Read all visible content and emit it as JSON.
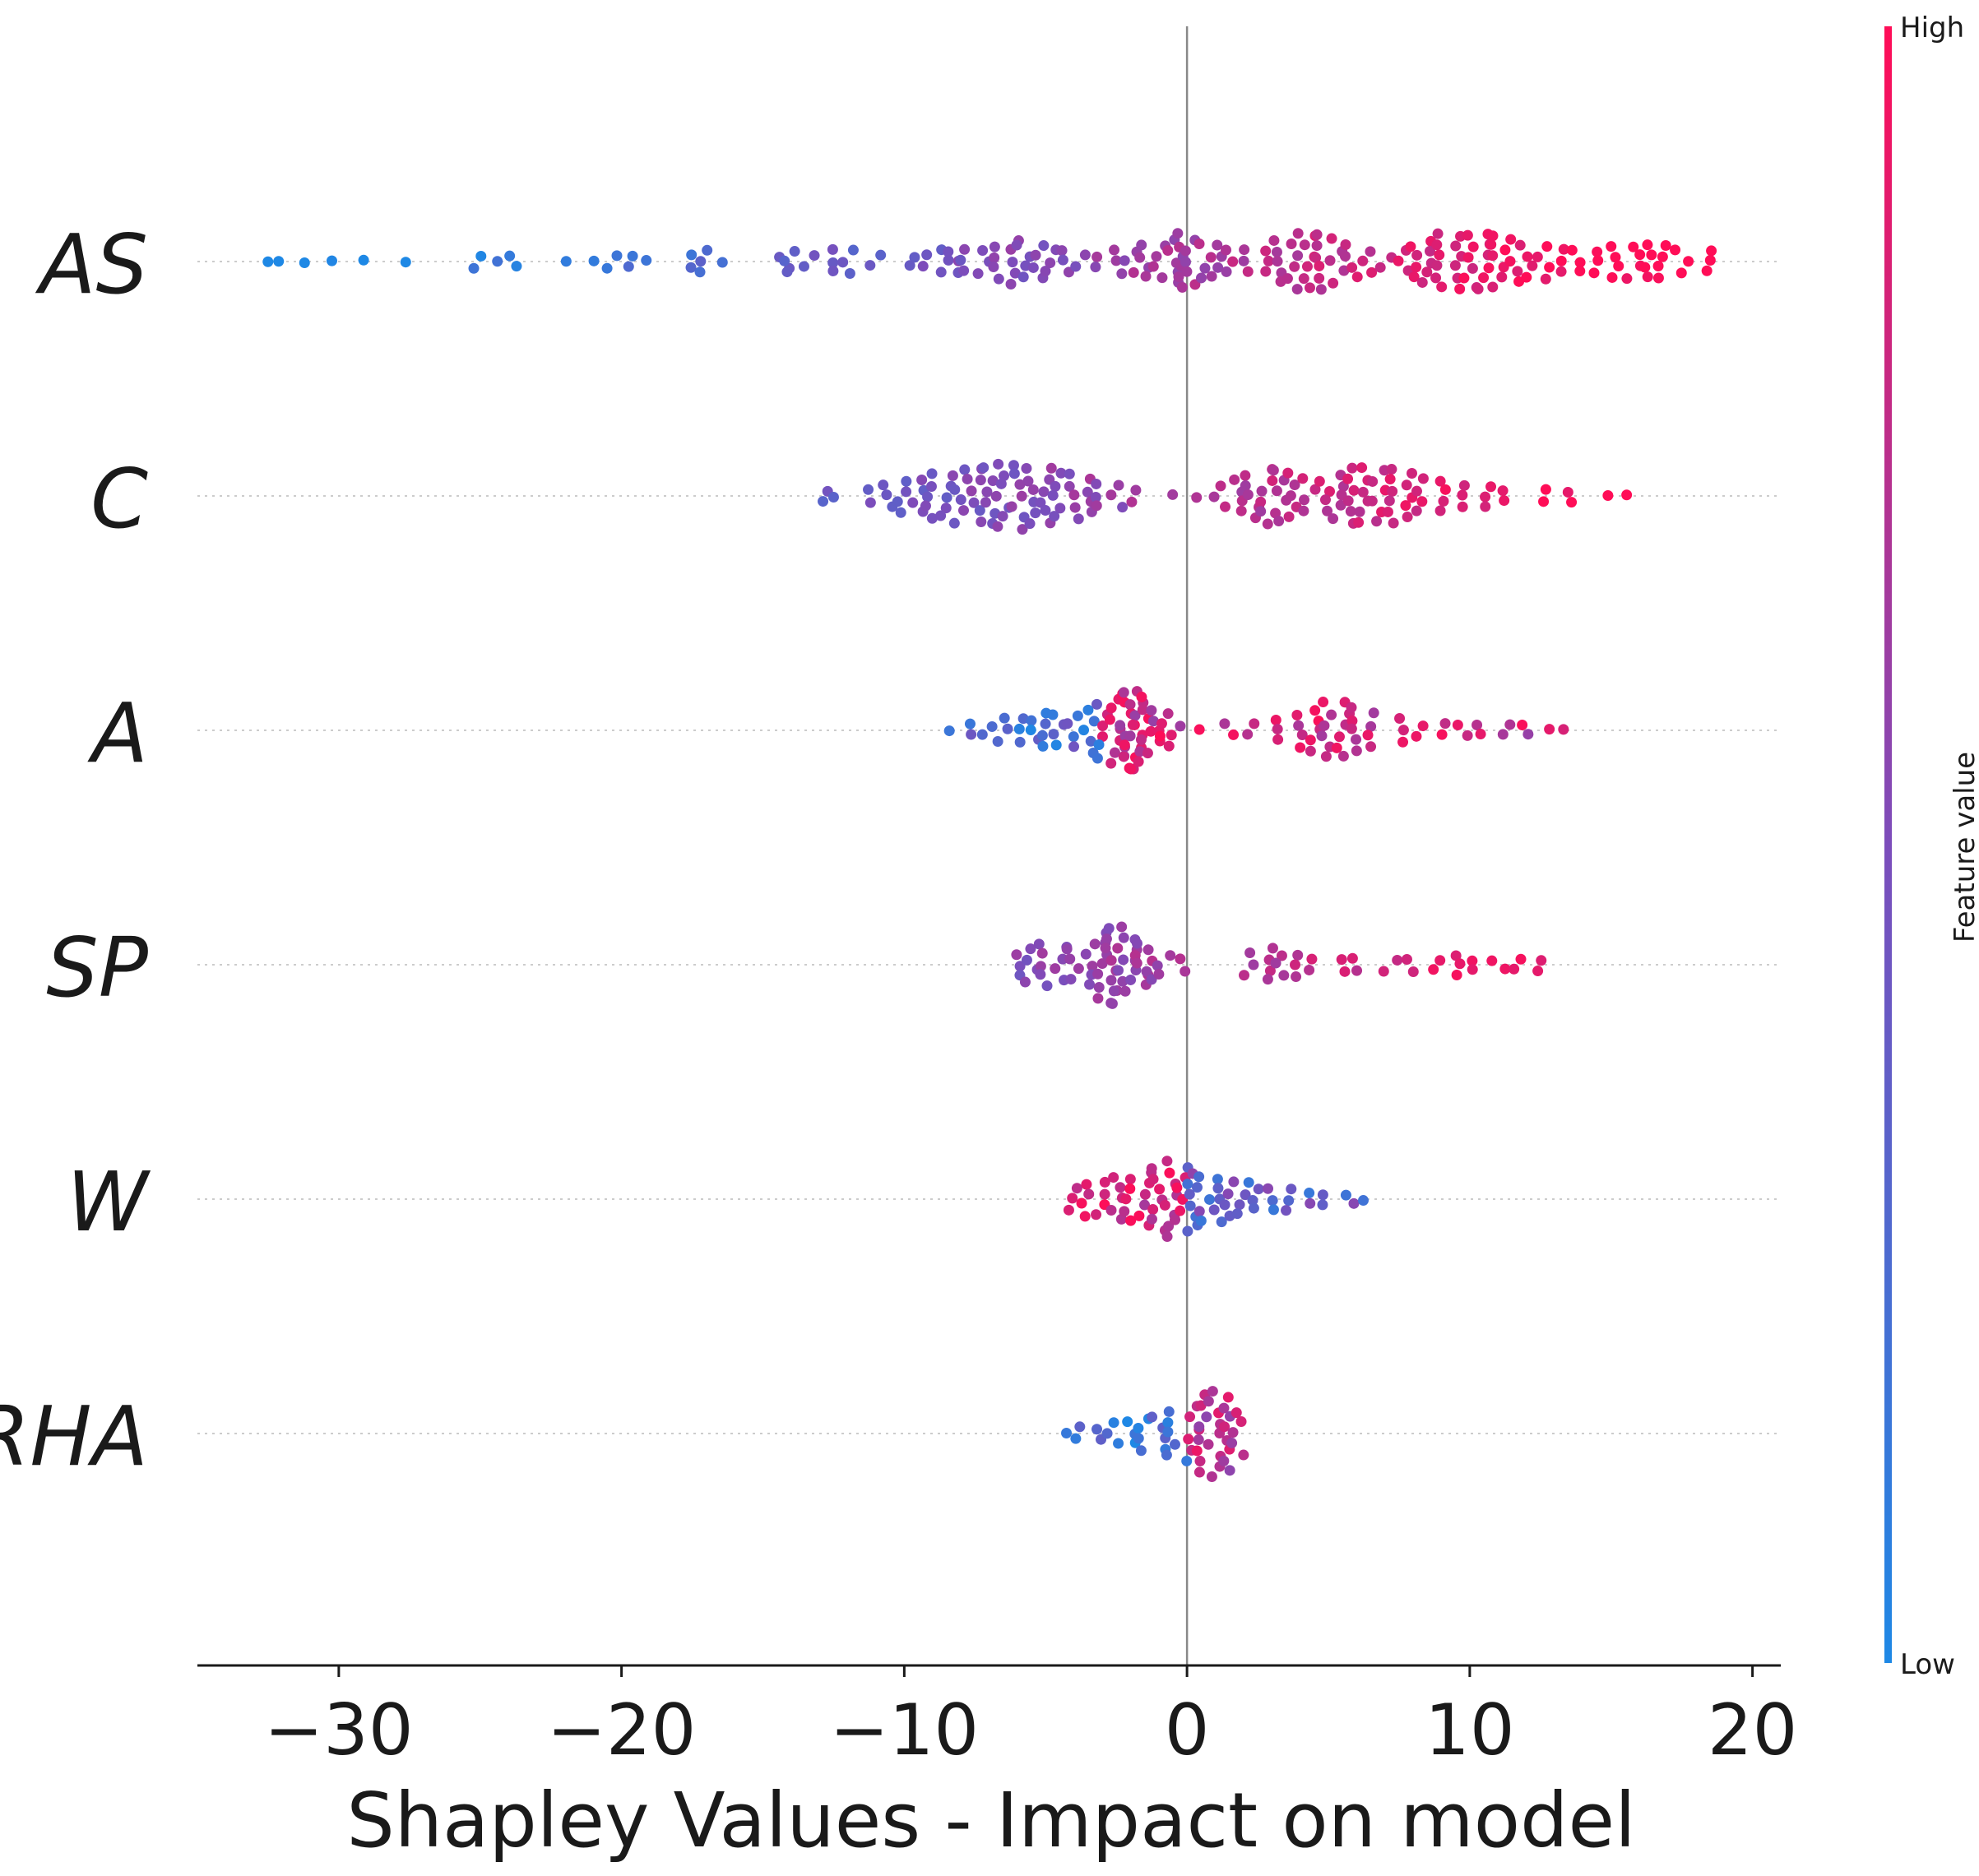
{
  "chart_data": {
    "type": "scatter",
    "subtype": "shap-beeswarm",
    "xlabel": "Shapley Values - Impact on model",
    "xlim": [
      -35,
      21
    ],
    "xticks": [
      -30,
      -20,
      -10,
      0,
      10,
      20
    ],
    "xtick_labels": [
      "−30",
      "−20",
      "−10",
      "0",
      "10",
      "20"
    ],
    "features": [
      "AS",
      "C",
      "A",
      "SP",
      "W",
      "RHA"
    ],
    "colorbar": {
      "title": "Feature value",
      "high_label": "High",
      "low_label": "Low",
      "low_color": "#1e88e5",
      "high_color": "#ff0d57"
    },
    "series": [
      {
        "name": "AS",
        "description": "Widest spread; low values (blue) strongly negative, high values (red) positive",
        "points": [
          [
            -32.5,
            0.05
          ],
          [
            -32.0,
            0.02
          ],
          [
            -31.0,
            0.1
          ],
          [
            -30.2,
            0.05
          ],
          [
            -29.2,
            0.12
          ],
          [
            -27.5,
            0.08
          ],
          [
            -25.0,
            0.15
          ],
          [
            -24.2,
            0.1
          ],
          [
            -23.8,
            0.2
          ],
          [
            -22.2,
            0.05
          ],
          [
            -21.0,
            0.1
          ],
          [
            -20.3,
            0.15
          ],
          [
            -19.8,
            0.2
          ],
          [
            -19.2,
            0.12
          ],
          [
            -17.5,
            0.15
          ],
          [
            -17.2,
            0.25
          ],
          [
            -16.3,
            0.1
          ],
          [
            -14.3,
            0.2
          ],
          [
            -14.0,
            0.25
          ],
          [
            -13.3,
            0.15
          ],
          [
            -12.5,
            0.3
          ],
          [
            -12.0,
            0.25
          ],
          [
            -11.0,
            0.2
          ],
          [
            -9.8,
            0.2
          ],
          [
            -9.2,
            0.15
          ],
          [
            -8.5,
            0.3
          ],
          [
            -8.2,
            0.25
          ],
          [
            -7.8,
            0.28
          ],
          [
            -7.2,
            0.32
          ],
          [
            -6.8,
            0.35
          ],
          [
            -6.2,
            0.45
          ],
          [
            -5.8,
            0.4
          ],
          [
            -5.3,
            0.38
          ],
          [
            -4.8,
            0.3
          ],
          [
            -4.3,
            0.25
          ],
          [
            -3.8,
            0.2
          ],
          [
            -3.0,
            0.18
          ],
          [
            -2.5,
            0.25
          ],
          [
            -2.0,
            0.3
          ],
          [
            -1.5,
            0.35
          ],
          [
            -1.0,
            0.38
          ],
          [
            -0.5,
            0.45
          ],
          [
            -0.2,
            0.55
          ],
          [
            0.2,
            0.5
          ],
          [
            0.6,
            0.4
          ],
          [
            1.0,
            0.35
          ],
          [
            1.6,
            0.3
          ],
          [
            2.2,
            0.25
          ],
          [
            2.8,
            0.28
          ],
          [
            3.2,
            0.45
          ],
          [
            3.8,
            0.55
          ],
          [
            4.3,
            0.6
          ],
          [
            4.8,
            0.55
          ],
          [
            5.3,
            0.45
          ],
          [
            5.8,
            0.4
          ],
          [
            6.4,
            0.3
          ],
          [
            7.0,
            0.22
          ],
          [
            7.6,
            0.3
          ],
          [
            8.0,
            0.42
          ],
          [
            8.5,
            0.5
          ],
          [
            9.0,
            0.55
          ],
          [
            9.5,
            0.58
          ],
          [
            10.0,
            0.6
          ],
          [
            10.5,
            0.62
          ],
          [
            11.0,
            0.58
          ],
          [
            11.5,
            0.5
          ],
          [
            12.0,
            0.42
          ],
          [
            12.6,
            0.35
          ],
          [
            13.2,
            0.3
          ],
          [
            13.8,
            0.25
          ],
          [
            14.5,
            0.3
          ],
          [
            15.2,
            0.35
          ],
          [
            15.8,
            0.35
          ],
          [
            16.3,
            0.42
          ],
          [
            16.8,
            0.38
          ],
          [
            17.5,
            0.28
          ],
          [
            18.3,
            0.3
          ]
        ]
      },
      {
        "name": "C",
        "description": "Low values (blue) negative around -6, high values (purple/red) positive up to 15",
        "points": [
          [
            -12.8,
            0.15
          ],
          [
            -12.3,
            0.12
          ],
          [
            -11.2,
            0.2
          ],
          [
            -10.5,
            0.3
          ],
          [
            -10.0,
            0.35
          ],
          [
            -9.5,
            0.4
          ],
          [
            -9.0,
            0.45
          ],
          [
            -8.5,
            0.5
          ],
          [
            -8.0,
            0.55
          ],
          [
            -7.5,
            0.6
          ],
          [
            -7.0,
            0.62
          ],
          [
            -6.5,
            0.65
          ],
          [
            -6.0,
            0.68
          ],
          [
            -5.5,
            0.6
          ],
          [
            -5.0,
            0.55
          ],
          [
            -4.5,
            0.5
          ],
          [
            -4.0,
            0.45
          ],
          [
            -3.5,
            0.38
          ],
          [
            -3.0,
            0.3
          ],
          [
            -2.5,
            0.25
          ],
          [
            -1.8,
            0.2
          ],
          [
            -0.5,
            0.1
          ],
          [
            0.2,
            0.08
          ],
          [
            1.2,
            0.3
          ],
          [
            1.8,
            0.4
          ],
          [
            2.3,
            0.5
          ],
          [
            2.8,
            0.55
          ],
          [
            3.3,
            0.58
          ],
          [
            3.8,
            0.5
          ],
          [
            4.3,
            0.4
          ],
          [
            4.8,
            0.42
          ],
          [
            5.3,
            0.5
          ],
          [
            5.8,
            0.56
          ],
          [
            6.3,
            0.6
          ],
          [
            6.8,
            0.62
          ],
          [
            7.3,
            0.58
          ],
          [
            7.8,
            0.5
          ],
          [
            8.3,
            0.42
          ],
          [
            9.0,
            0.35
          ],
          [
            9.8,
            0.3
          ],
          [
            10.5,
            0.25
          ],
          [
            11.2,
            0.2
          ],
          [
            12.8,
            0.18
          ],
          [
            13.5,
            0.15
          ],
          [
            15.0,
            0.12
          ],
          [
            15.5,
            0.1
          ]
        ]
      },
      {
        "name": "A",
        "description": "Dense cluster near -2 (mixed colors), high values (red) positive 4-13",
        "points": [
          [
            -8.2,
            0.1
          ],
          [
            -7.5,
            0.15
          ],
          [
            -7.0,
            0.2
          ],
          [
            -6.5,
            0.25
          ],
          [
            -6.0,
            0.3
          ],
          [
            -5.5,
            0.32
          ],
          [
            -5.0,
            0.35
          ],
          [
            -4.5,
            0.38
          ],
          [
            -4.0,
            0.4
          ],
          [
            -3.5,
            0.45
          ],
          [
            -3.0,
            0.55
          ],
          [
            -2.5,
            0.68
          ],
          [
            -2.2,
            0.75
          ],
          [
            -2.0,
            0.8
          ],
          [
            -1.8,
            0.75
          ],
          [
            -1.5,
            0.65
          ],
          [
            -1.2,
            0.5
          ],
          [
            -0.8,
            0.35
          ],
          [
            -0.3,
            0.2
          ],
          [
            0.5,
            0.12
          ],
          [
            1.5,
            0.15
          ],
          [
            2.3,
            0.2
          ],
          [
            3.0,
            0.25
          ],
          [
            4.0,
            0.4
          ],
          [
            4.6,
            0.5
          ],
          [
            5.0,
            0.55
          ],
          [
            5.5,
            0.58
          ],
          [
            6.0,
            0.5
          ],
          [
            6.5,
            0.35
          ],
          [
            7.5,
            0.25
          ],
          [
            8.2,
            0.2
          ],
          [
            9.0,
            0.18
          ],
          [
            9.8,
            0.2
          ],
          [
            10.5,
            0.22
          ],
          [
            11.2,
            0.2
          ],
          [
            12.0,
            0.15
          ],
          [
            13.0,
            0.12
          ],
          [
            13.5,
            0.1
          ]
        ]
      },
      {
        "name": "SP",
        "description": "Low values (blue) around -3 to -6, high values (red/purple) positive 2-12",
        "points": [
          [
            -5.8,
            0.3
          ],
          [
            -5.5,
            0.4
          ],
          [
            -5.0,
            0.45
          ],
          [
            -4.5,
            0.4
          ],
          [
            -4.0,
            0.38
          ],
          [
            -3.5,
            0.5
          ],
          [
            -3.0,
            0.7
          ],
          [
            -2.7,
            0.8
          ],
          [
            -2.4,
            0.75
          ],
          [
            -2.0,
            0.6
          ],
          [
            -1.6,
            0.45
          ],
          [
            -1.2,
            0.35
          ],
          [
            -0.8,
            0.3
          ],
          [
            -0.3,
            0.2
          ],
          [
            2.2,
            0.3
          ],
          [
            2.8,
            0.35
          ],
          [
            3.3,
            0.32
          ],
          [
            3.8,
            0.28
          ],
          [
            4.5,
            0.2
          ],
          [
            5.5,
            0.18
          ],
          [
            6.0,
            0.2
          ],
          [
            7.2,
            0.15
          ],
          [
            8.0,
            0.2
          ],
          [
            8.8,
            0.22
          ],
          [
            9.5,
            0.25
          ],
          [
            10.2,
            0.22
          ],
          [
            11.0,
            0.2
          ],
          [
            11.8,
            0.22
          ],
          [
            12.3,
            0.2
          ]
        ]
      },
      {
        "name": "W",
        "description": "Clustered around 0; higher values (red) slightly negative, low values (blue) slightly positive",
        "points": [
          [
            -4.0,
            0.25
          ],
          [
            -3.5,
            0.35
          ],
          [
            -3.0,
            0.42
          ],
          [
            -2.5,
            0.45
          ],
          [
            -2.0,
            0.5
          ],
          [
            -1.5,
            0.58
          ],
          [
            -1.0,
            0.68
          ],
          [
            -0.6,
            0.8
          ],
          [
            -0.2,
            0.7
          ],
          [
            0.2,
            0.6
          ],
          [
            0.6,
            0.52
          ],
          [
            1.0,
            0.48
          ],
          [
            1.5,
            0.42
          ],
          [
            2.0,
            0.35
          ],
          [
            2.5,
            0.32
          ],
          [
            3.0,
            0.28
          ],
          [
            3.5,
            0.25
          ],
          [
            4.2,
            0.2
          ],
          [
            5.0,
            0.18
          ],
          [
            5.8,
            0.15
          ],
          [
            6.4,
            0.1
          ]
        ]
      },
      {
        "name": "RHA",
        "description": "Low values (blue) slightly negative, high values (purple/red) clustered near +1",
        "points": [
          [
            -4.5,
            0.1
          ],
          [
            -3.8,
            0.15
          ],
          [
            -3.2,
            0.2
          ],
          [
            -2.6,
            0.25
          ],
          [
            -2.0,
            0.3
          ],
          [
            -1.5,
            0.35
          ],
          [
            -1.0,
            0.42
          ],
          [
            -0.5,
            0.48
          ],
          [
            0.2,
            0.6
          ],
          [
            0.6,
            0.75
          ],
          [
            1.0,
            0.85
          ],
          [
            1.4,
            0.75
          ],
          [
            1.8,
            0.5
          ]
        ]
      }
    ]
  }
}
